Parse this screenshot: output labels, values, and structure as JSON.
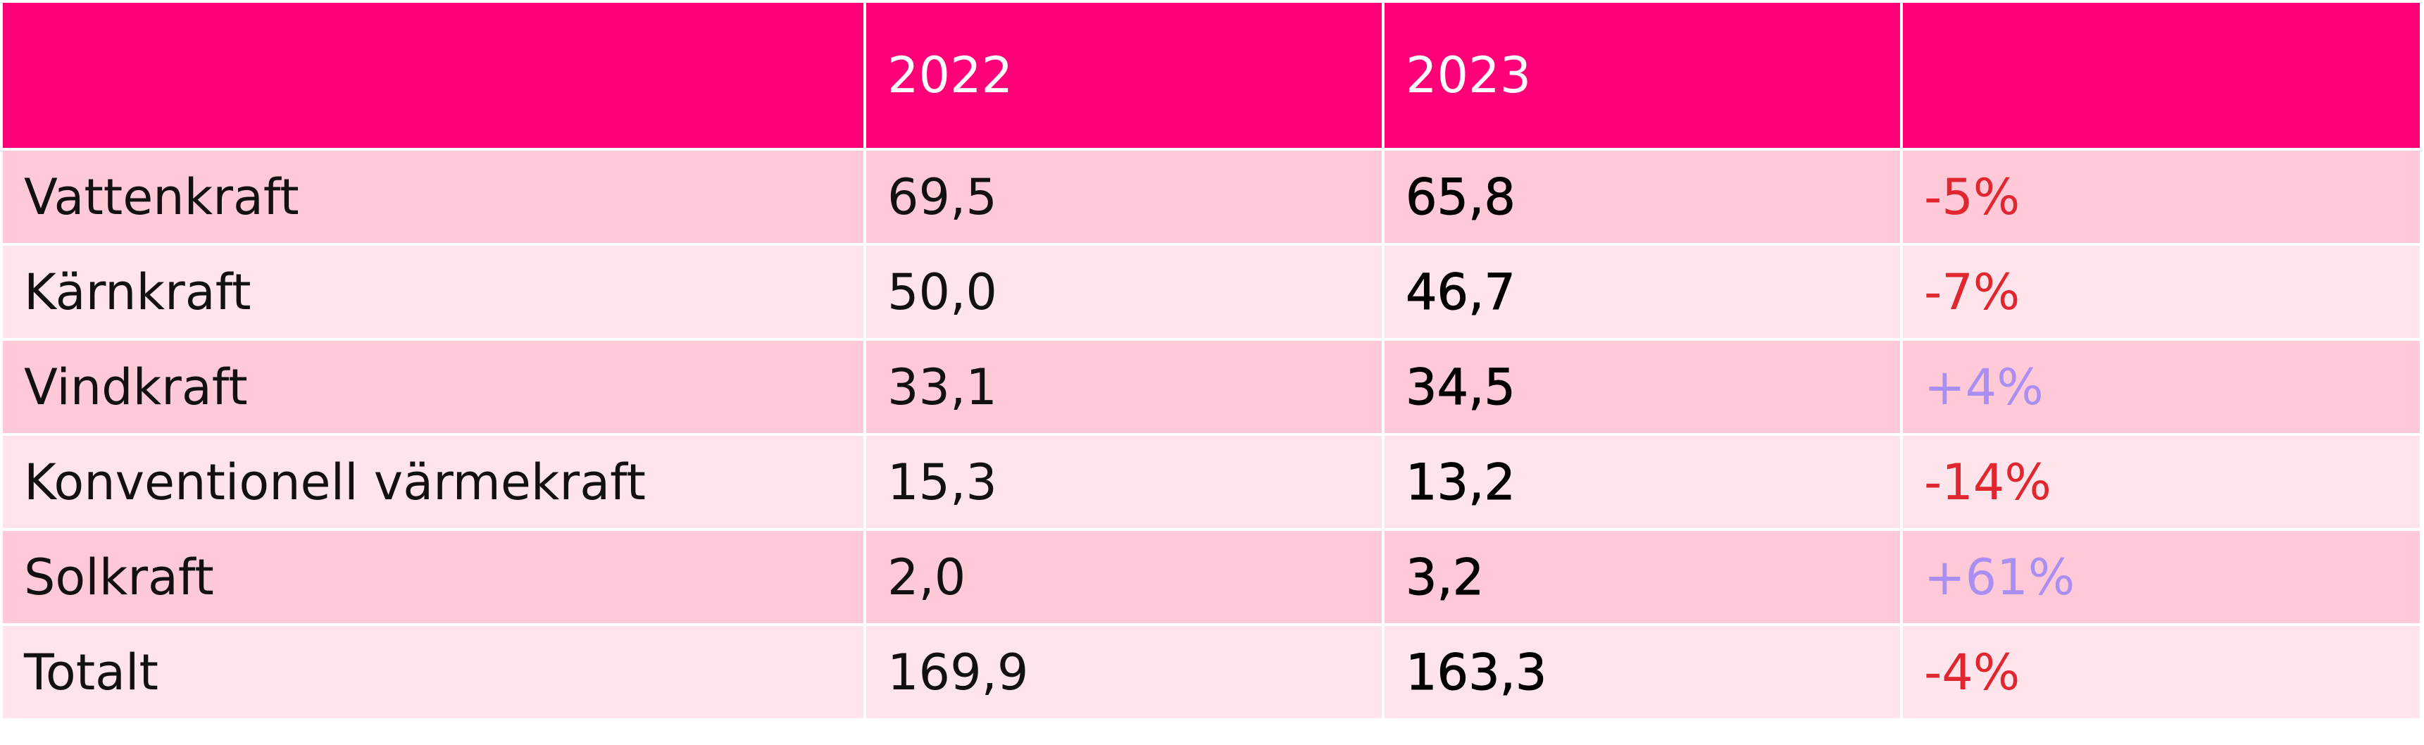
{
  "table": {
    "header": [
      "2022",
      "2023"
    ],
    "rows": [
      [
        "Vattenkraft",
        "69,5",
        "65,8",
        "-5%"
      ],
      [
        "Kärnkraft",
        "50,0",
        "46,7",
        "-7%"
      ],
      [
        "Vindkraft",
        "33,1",
        "34,5",
        "+4%"
      ],
      [
        "Konventionell värmekraft",
        "15,3",
        "13,2",
        "-14%"
      ],
      [
        "Solkraft",
        "2,0",
        "3,2",
        "+61%"
      ],
      [
        "Totalt",
        "169,9",
        "163,3",
        "-4%"
      ]
    ]
  }
}
